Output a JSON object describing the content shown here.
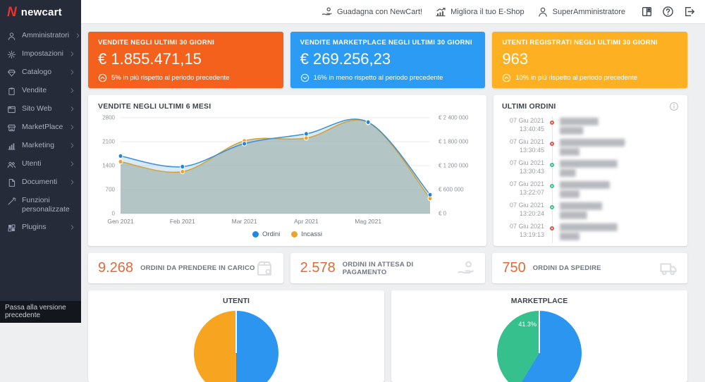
{
  "brand": {
    "logo_mark": "N",
    "logo_text": "newcart",
    "mark_color": "#e8332a"
  },
  "header": {
    "links": [
      {
        "label": "Guadagna con NewCart!",
        "icon": "hand-coin"
      },
      {
        "label": "Migliora il tuo E-Shop",
        "icon": "growth"
      },
      {
        "label": "SuperAmministratore",
        "icon": "person"
      }
    ],
    "icon_buttons": [
      {
        "icon": "apps-grid"
      },
      {
        "icon": "help"
      },
      {
        "icon": "logout"
      }
    ]
  },
  "sidebar": {
    "items": [
      {
        "label": "Amministratori",
        "icon": "person",
        "submenu": true
      },
      {
        "label": "Impostazioni",
        "icon": "gear",
        "submenu": true
      },
      {
        "label": "Catalogo",
        "icon": "diamond",
        "submenu": true
      },
      {
        "label": "Vendite",
        "icon": "clipboard",
        "submenu": true
      },
      {
        "label": "Sito Web",
        "icon": "browser",
        "submenu": true
      },
      {
        "label": "MarketPlace",
        "icon": "store",
        "submenu": true
      },
      {
        "label": "Marketing",
        "icon": "bar-chart",
        "submenu": true
      },
      {
        "label": "Utenti",
        "icon": "people",
        "submenu": true
      },
      {
        "label": "Documenti",
        "icon": "document",
        "submenu": true
      },
      {
        "label": "Funzioni personalizzate",
        "icon": "wand",
        "submenu": false
      },
      {
        "label": "Plugins",
        "icon": "plugin",
        "submenu": true
      }
    ],
    "footer_link": "Passa alla versione precedente"
  },
  "kpi_cards": [
    {
      "title": "VENDITE NEGLI ULTIMI 30 GIORNI",
      "value": "€ 1.855.471,15",
      "note": "5% in più rispetto al periodo precedente",
      "trend": "up",
      "color": "#f4611d"
    },
    {
      "title": "VENDITE MARKETPLACE NEGLI ULTIMI 30 GIORNI",
      "value": "€ 269.256,23",
      "note": "16% in meno rispetto al periodo precedente",
      "trend": "down",
      "color": "#2b9bf4"
    },
    {
      "title": "UTENTI REGISTRATI NEGLI ULTIMI 30 GIORNI",
      "value": "963",
      "note": "10% in più rispetto al periodo precedente",
      "trend": "up",
      "color": "#fcb022"
    }
  ],
  "chart_data": [
    {
      "type": "area",
      "title": "VENDITE NEGLI ULTIMI 6 MESI",
      "x": [
        "Gen 2021",
        "Feb 2021",
        "Mar 2021",
        "Apr 2021",
        "Mag 2021",
        ""
      ],
      "series": [
        {
          "name": "Ordini",
          "axis": "left",
          "color": "#3d8fd8",
          "dot_color": "#2483d5",
          "fill": "rgba(144,196,236,0.35)",
          "values": [
            1680,
            1370,
            2040,
            2330,
            2670,
            550
          ]
        },
        {
          "name": "Incassi",
          "axis": "right",
          "color": "#d2a235",
          "dot_color": "#f0a32b",
          "fill": "rgba(151,166,156,0.55)",
          "values": [
            1300000,
            1050000,
            1820000,
            1890000,
            2280000,
            380000
          ]
        }
      ],
      "y_left": {
        "ticks": [
          "2800",
          "2100",
          "1400",
          "700",
          "0"
        ],
        "max": 2800
      },
      "y_right": {
        "ticks": [
          "€ 2 400 000",
          "€ 1 800 000",
          "€ 1 200 000",
          "€ 600 000",
          "€ 0"
        ],
        "max": 2400000
      },
      "legend": [
        {
          "label": "Ordini",
          "color": "#1e88e5"
        },
        {
          "label": "Incassi",
          "color": "#f0a32b"
        }
      ],
      "grid": true,
      "legend_position": "bottom"
    },
    {
      "type": "pie",
      "title": "UTENTI",
      "slices": [
        {
          "label": "",
          "value": 50,
          "color": "#2b95f0"
        },
        {
          "label": "",
          "value": 50,
          "color": "#f7a420"
        }
      ]
    },
    {
      "type": "pie",
      "title": "MARKETPLACE",
      "slices": [
        {
          "label": "",
          "value": 58.7,
          "color": "#2b95f0"
        },
        {
          "label": "41.3%",
          "value": 41.3,
          "color": "#35c08d"
        }
      ]
    }
  ],
  "latest_orders": {
    "title": "ULTIMI ORDINI",
    "entries": [
      {
        "date": "07 Giu 2021",
        "time": "13:40:45",
        "status_color": "#e0584a",
        "name_blur": "██████████",
        "amount_blur": "██████"
      },
      {
        "date": "07 Giu 2021",
        "time": "13:30:45",
        "status_color": "#e0584a",
        "name_blur": "█████████████████",
        "amount_blur": "█████"
      },
      {
        "date": "07 Giu 2021",
        "time": "13:30:43",
        "status_color": "#3fbd8d",
        "name_blur": "███████████████",
        "amount_blur": "████"
      },
      {
        "date": "07 Giu 2021",
        "time": "13:22:07",
        "status_color": "#3fbd8d",
        "name_blur": "█████████████",
        "amount_blur": "█████"
      },
      {
        "date": "07 Giu 2021",
        "time": "13:20:24",
        "status_color": "#3fbd8d",
        "name_blur": "███████████",
        "amount_blur": "███████"
      },
      {
        "date": "07 Giu 2021",
        "time": "13:19:13",
        "status_color": "#e0584a",
        "name_blur": "███████████████",
        "amount_blur": "█████"
      }
    ]
  },
  "order_stats": [
    {
      "value": "9.268",
      "label": "ORDINI DA PRENDERE IN CARICO",
      "icon": "package"
    },
    {
      "value": "2.578",
      "label": "ORDINI IN ATTESA DI PAGAMENTO",
      "icon": "hand-coin"
    },
    {
      "value": "750",
      "label": "ORDINI DA SPEDIRE",
      "icon": "truck"
    }
  ]
}
